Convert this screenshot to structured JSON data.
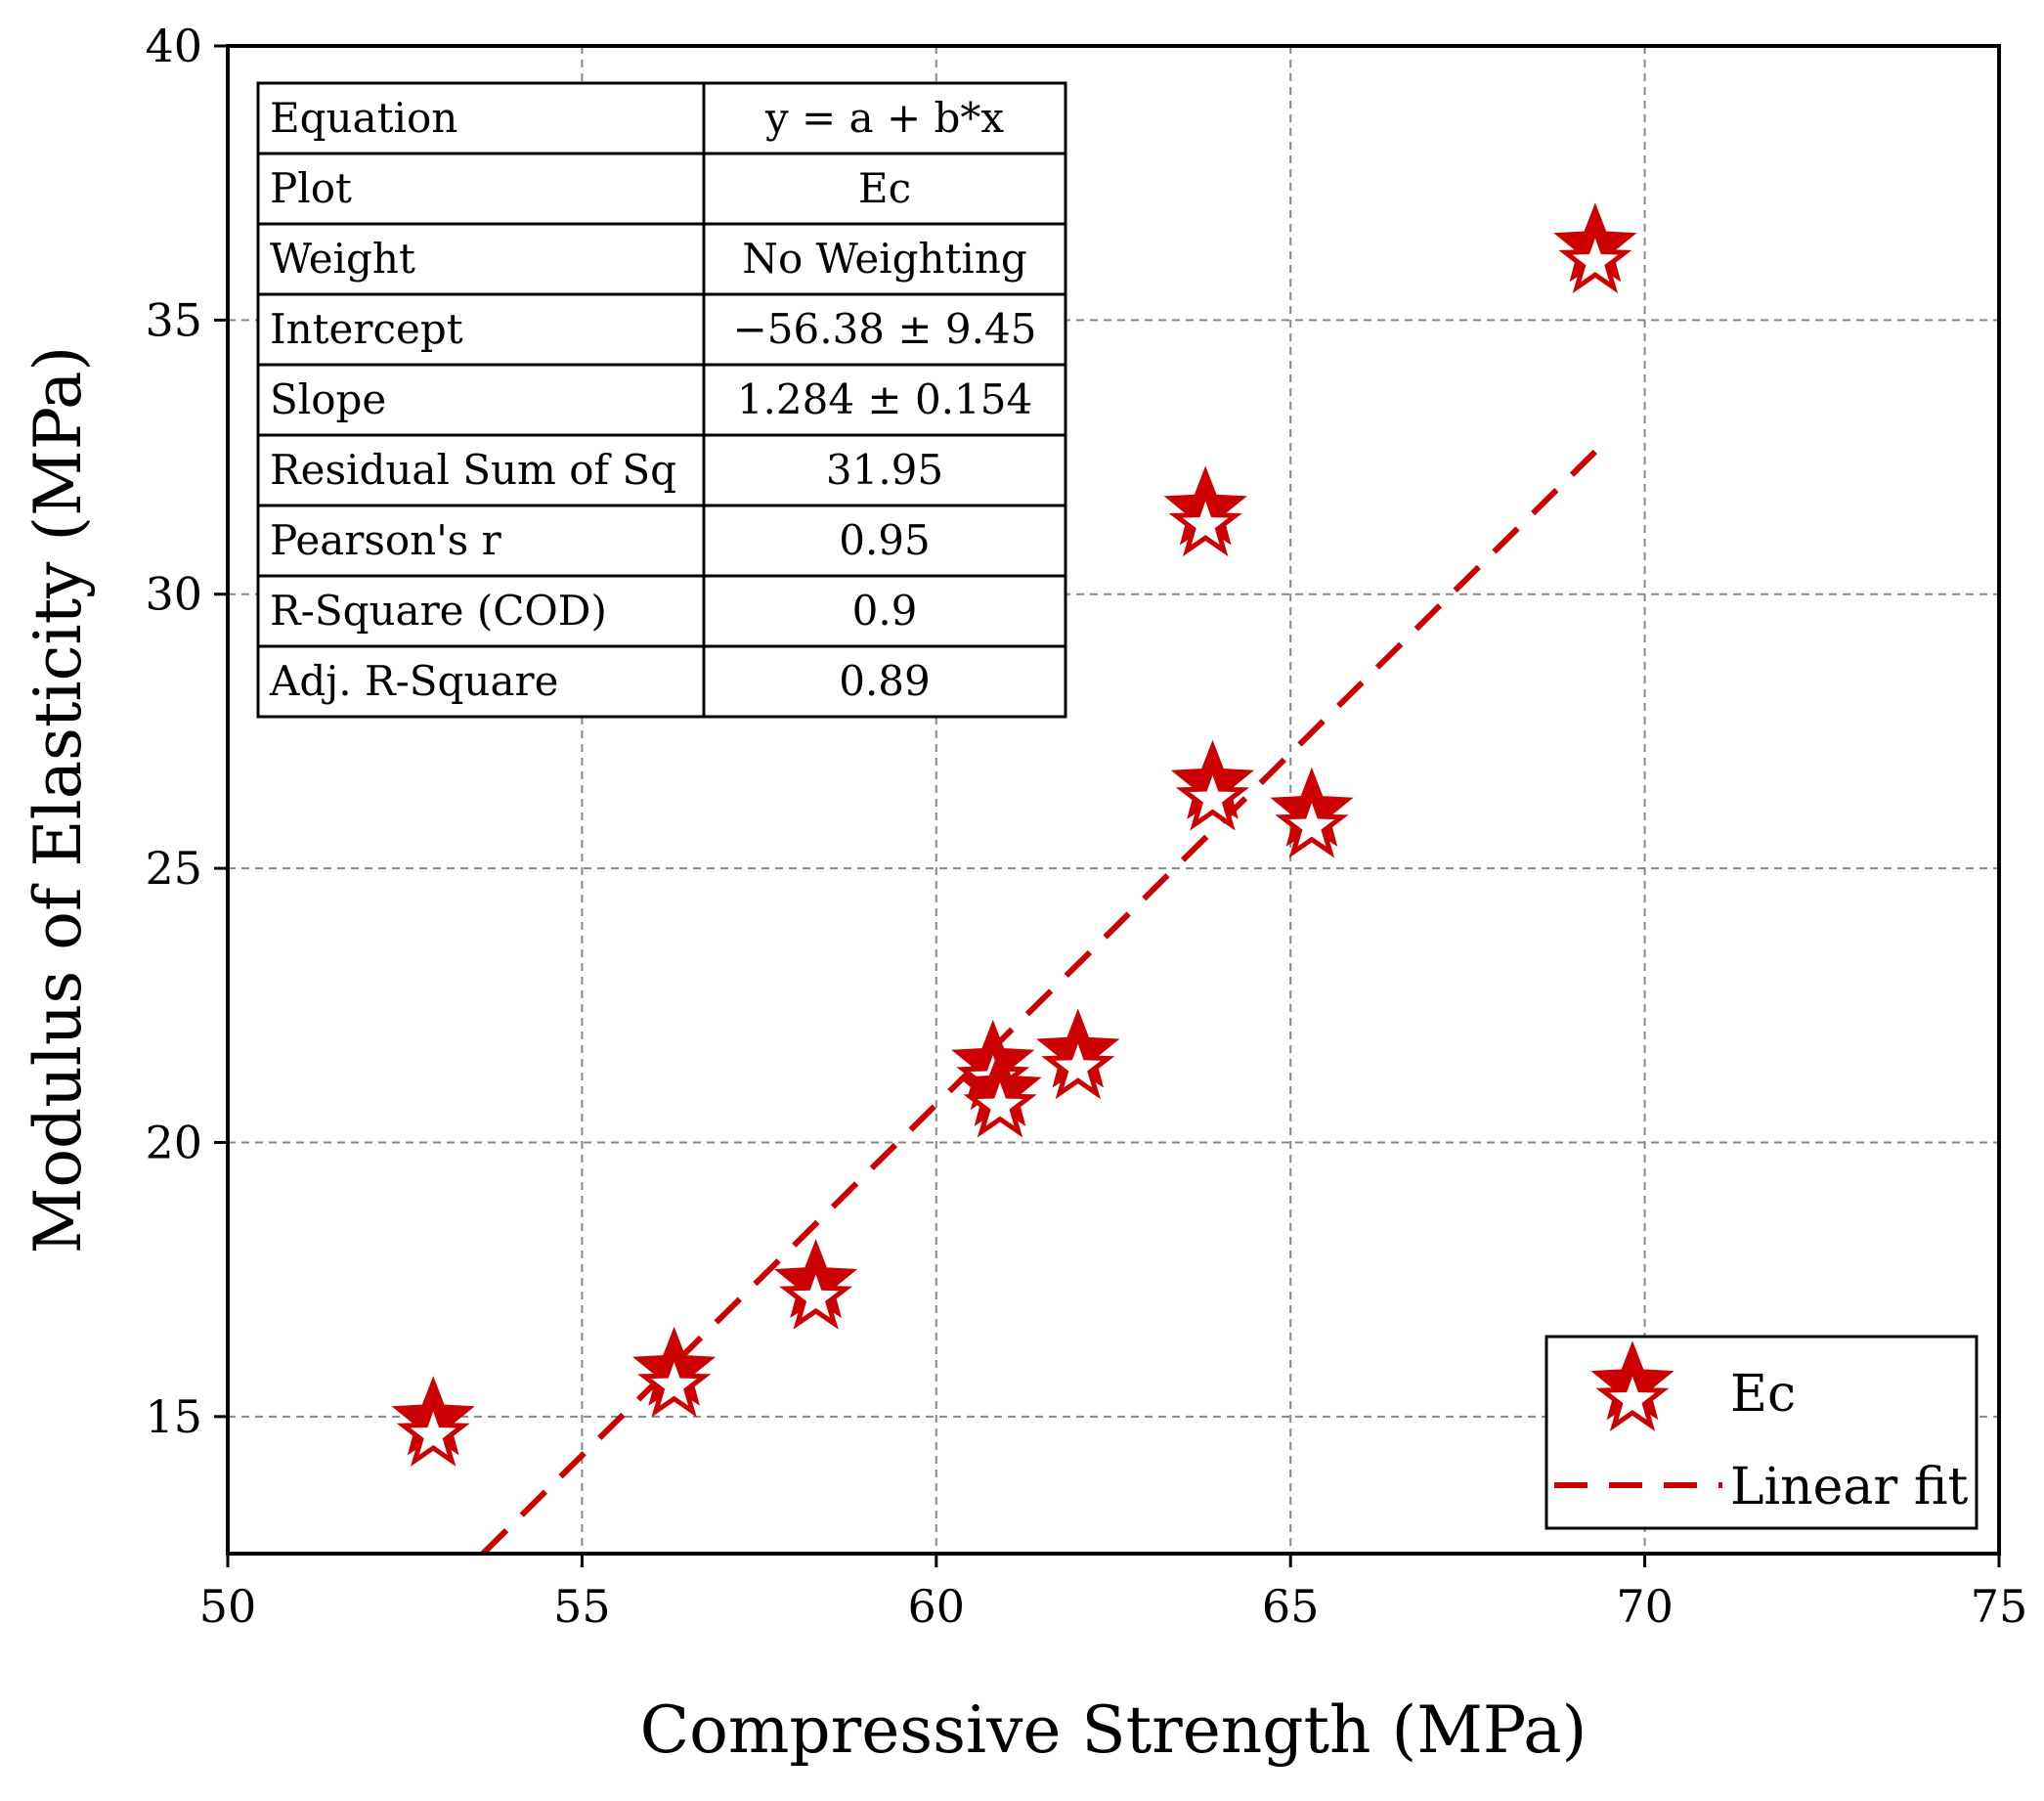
{
  "chart_data": {
    "type": "scatter",
    "title": "",
    "xlabel": "Compressive Strength (MPa)",
    "ylabel": "Modulus of Elasticity (MPa)",
    "xlim": [
      50,
      75
    ],
    "ylim": [
      12.5,
      40
    ],
    "xticks": [
      50,
      55,
      60,
      65,
      70,
      75
    ],
    "yticks": [
      15,
      20,
      25,
      30,
      35,
      40
    ],
    "grid": true,
    "series": [
      {
        "name": "Ec",
        "marker": "star",
        "color": "#cc0000",
        "points": [
          {
            "x": 52.9,
            "y": 14.8
          },
          {
            "x": 56.3,
            "y": 15.7
          },
          {
            "x": 58.3,
            "y": 17.3
          },
          {
            "x": 60.8,
            "y": 21.3
          },
          {
            "x": 60.9,
            "y": 20.8
          },
          {
            "x": 62.0,
            "y": 21.5
          },
          {
            "x": 63.8,
            "y": 31.4
          },
          {
            "x": 63.9,
            "y": 26.4
          },
          {
            "x": 65.3,
            "y": 25.9
          },
          {
            "x": 69.3,
            "y": 36.2
          }
        ]
      },
      {
        "name": "Linear fit",
        "line_style": "dashed",
        "color": "#cc0000",
        "x": [
          53.6,
          69.3
        ],
        "y": [
          12.5,
          32.6
        ]
      }
    ],
    "legend": {
      "position": "bottom-right",
      "entries": [
        "Ec",
        "Linear fit"
      ]
    },
    "fit_stats": {
      "position": "top-left",
      "rows": [
        {
          "label": "Equation",
          "value": "y = a + b*x"
        },
        {
          "label": "Plot",
          "value": "Ec"
        },
        {
          "label": "Weight",
          "value": "No Weighting"
        },
        {
          "label": "Intercept",
          "value": "−56.38 ± 9.45"
        },
        {
          "label": "Slope",
          "value": "1.284 ± 0.154"
        },
        {
          "label": "Residual Sum of Sq",
          "value": "31.95"
        },
        {
          "label": "Pearson's r",
          "value": "0.95"
        },
        {
          "label": "R-Square (COD)",
          "value": "0.9"
        },
        {
          "label": "Adj. R-Square",
          "value": "0.89"
        }
      ]
    }
  }
}
